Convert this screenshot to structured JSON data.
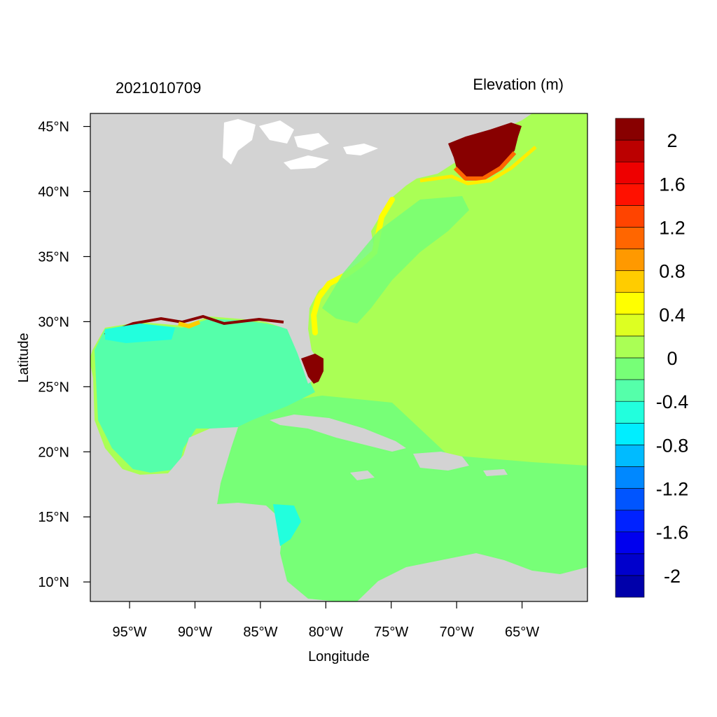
{
  "map": {
    "left_title": "2021010709",
    "right_title": "Elevation (m)",
    "xlabel": "Longitude",
    "ylabel": "Latitude",
    "lon_range": [
      -98,
      -60
    ],
    "lat_range": [
      8.5,
      46
    ],
    "x_ticks": [
      {
        "value": -95,
        "label": "95°W"
      },
      {
        "value": -90,
        "label": "90°W"
      },
      {
        "value": -85,
        "label": "85°W"
      },
      {
        "value": -80,
        "label": "80°W"
      },
      {
        "value": -75,
        "label": "75°W"
      },
      {
        "value": -70,
        "label": "70°W"
      },
      {
        "value": -65,
        "label": "65°W"
      }
    ],
    "y_ticks": [
      {
        "value": 45,
        "label": "45°N"
      },
      {
        "value": 40,
        "label": "40°N"
      },
      {
        "value": 35,
        "label": "35°N"
      },
      {
        "value": 30,
        "label": "30°N"
      },
      {
        "value": 25,
        "label": "25°N"
      },
      {
        "value": 20,
        "label": "20°N"
      },
      {
        "value": 15,
        "label": "15°N"
      },
      {
        "value": 10,
        "label": "10°N"
      }
    ],
    "land_color": "#d3d3d3",
    "lake_color": "#ffffff"
  },
  "colorbar": {
    "colors": [
      "#0000aa",
      "#0000cc",
      "#0000ee",
      "#0022ff",
      "#0055ff",
      "#0088ff",
      "#00bbff",
      "#00eeff",
      "#22ffdd",
      "#55ffaa",
      "#77ff77",
      "#aaff55",
      "#ddff22",
      "#ffff00",
      "#ffcc00",
      "#ff9900",
      "#ff6600",
      "#ff4400",
      "#ff1100",
      "#ee0000",
      "#bb0000",
      "#880000"
    ],
    "labels": [
      "-2",
      "-1.6",
      "-1.2",
      "-0.8",
      "-0.4",
      "0",
      "0.4",
      "0.8",
      "1.2",
      "1.6",
      "2"
    ]
  },
  "fields": {
    "gulf": "#55ffaa",
    "caribbean": "#77ff77",
    "atlantic": "#aaff55",
    "gulf_of_maine": "#880000",
    "south_florida": "#880000",
    "coastal_yellow": "#ffff00"
  }
}
